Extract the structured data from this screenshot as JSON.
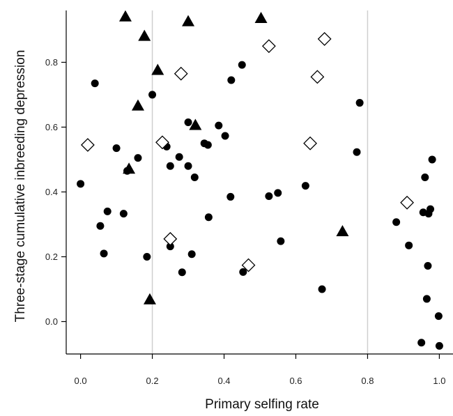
{
  "chart_data": {
    "type": "scatter",
    "xlabel": "Primary selfing rate",
    "ylabel": "Three-stage cumulative inbreeding depression",
    "xlim": [
      -0.04,
      1.04
    ],
    "ylim": [
      -0.1,
      0.96
    ],
    "x_ticks": [
      "0.0",
      "0.2",
      "0.4",
      "0.6",
      "0.8",
      "1.0"
    ],
    "y_ticks": [
      "0.0",
      "0.2",
      "0.4",
      "0.6",
      "0.8"
    ],
    "reference_lines_x": [
      0.2,
      0.8
    ],
    "grid": false,
    "series": [
      {
        "marker": "filled-circle",
        "color": "#000000",
        "points": [
          [
            0.0,
            0.425
          ],
          [
            0.04,
            0.735
          ],
          [
            0.055,
            0.295
          ],
          [
            0.065,
            0.21
          ],
          [
            0.075,
            0.34
          ],
          [
            0.1,
            0.535
          ],
          [
            0.12,
            0.333
          ],
          [
            0.13,
            0.465
          ],
          [
            0.16,
            0.505
          ],
          [
            0.185,
            0.2
          ],
          [
            0.2,
            0.7
          ],
          [
            0.24,
            0.54
          ],
          [
            0.25,
            0.48
          ],
          [
            0.25,
            0.232
          ],
          [
            0.275,
            0.508
          ],
          [
            0.283,
            0.152
          ],
          [
            0.3,
            0.48
          ],
          [
            0.3,
            0.615
          ],
          [
            0.31,
            0.208
          ],
          [
            0.318,
            0.445
          ],
          [
            0.345,
            0.55
          ],
          [
            0.355,
            0.545
          ],
          [
            0.357,
            0.322
          ],
          [
            0.385,
            0.605
          ],
          [
            0.403,
            0.573
          ],
          [
            0.418,
            0.385
          ],
          [
            0.42,
            0.745
          ],
          [
            0.45,
            0.792
          ],
          [
            0.453,
            0.153
          ],
          [
            0.525,
            0.387
          ],
          [
            0.55,
            0.397
          ],
          [
            0.558,
            0.248
          ],
          [
            0.627,
            0.419
          ],
          [
            0.673,
            0.1
          ],
          [
            0.77,
            0.523
          ],
          [
            0.778,
            0.675
          ],
          [
            0.88,
            0.307
          ],
          [
            0.915,
            0.235
          ],
          [
            0.95,
            -0.065
          ],
          [
            0.955,
            0.337
          ],
          [
            0.96,
            0.445
          ],
          [
            0.965,
            0.07
          ],
          [
            0.968,
            0.172
          ],
          [
            0.97,
            0.333
          ],
          [
            0.975,
            0.347
          ],
          [
            0.98,
            0.5
          ],
          [
            0.998,
            0.017
          ],
          [
            1.0,
            -0.075
          ]
        ]
      },
      {
        "marker": "filled-triangle",
        "color": "#000000",
        "points": [
          [
            0.125,
            0.94
          ],
          [
            0.135,
            0.47
          ],
          [
            0.16,
            0.665
          ],
          [
            0.178,
            0.88
          ],
          [
            0.193,
            0.067
          ],
          [
            0.215,
            0.775
          ],
          [
            0.3,
            0.925
          ],
          [
            0.32,
            0.605
          ],
          [
            0.503,
            0.935
          ],
          [
            0.73,
            0.277
          ]
        ]
      },
      {
        "marker": "open-diamond",
        "color": "#000000",
        "points": [
          [
            0.02,
            0.545
          ],
          [
            0.228,
            0.553
          ],
          [
            0.25,
            0.255
          ],
          [
            0.28,
            0.765
          ],
          [
            0.468,
            0.174
          ],
          [
            0.525,
            0.85
          ],
          [
            0.64,
            0.55
          ],
          [
            0.66,
            0.755
          ],
          [
            0.68,
            0.872
          ],
          [
            0.91,
            0.367
          ]
        ]
      }
    ]
  }
}
